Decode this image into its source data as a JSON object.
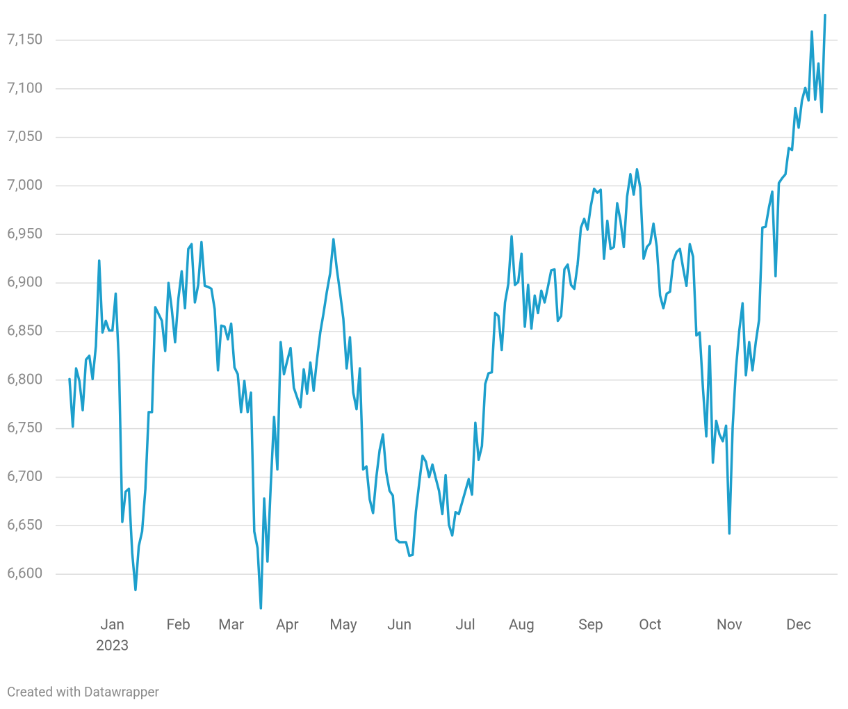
{
  "chart_data": {
    "type": "line",
    "credit": "Created with Datawrapper",
    "color": "#1d9fcc",
    "grid": true,
    "xlim": [
      0,
      229
    ],
    "xticks": [
      {
        "value": 13,
        "label": "Jan",
        "sublabel": "2023"
      },
      {
        "value": 33,
        "label": "Feb"
      },
      {
        "value": 49,
        "label": "Mar"
      },
      {
        "value": 66,
        "label": "Apr"
      },
      {
        "value": 83,
        "label": "May"
      },
      {
        "value": 100,
        "label": "Jun"
      },
      {
        "value": 120,
        "label": "Jul"
      },
      {
        "value": 137,
        "label": "Aug"
      },
      {
        "value": 158,
        "label": "Sep"
      },
      {
        "value": 176,
        "label": "Oct"
      },
      {
        "value": 200,
        "label": "Nov"
      },
      {
        "value": 221,
        "label": "Dec"
      }
    ],
    "ylim": [
      6560,
      7180
    ],
    "yticks": [
      {
        "value": 6600,
        "label": "6,600"
      },
      {
        "value": 6650,
        "label": "6,650"
      },
      {
        "value": 6700,
        "label": "6,700"
      },
      {
        "value": 6750,
        "label": "6,750"
      },
      {
        "value": 6800,
        "label": "6,800"
      },
      {
        "value": 6850,
        "label": "6,850"
      },
      {
        "value": 6900,
        "label": "6,900"
      },
      {
        "value": 6950,
        "label": "6,950"
      },
      {
        "value": 7000,
        "label": "7,000"
      },
      {
        "value": 7050,
        "label": "7,050"
      },
      {
        "value": 7100,
        "label": "7,100"
      },
      {
        "value": 7150,
        "label": "7,150"
      }
    ],
    "values": [
      6801,
      6752,
      6812,
      6799,
      6769,
      6821,
      6825,
      6801,
      6835,
      6923,
      6849,
      6861,
      6851,
      6851,
      6889,
      6816,
      6654,
      6685,
      6688,
      6622,
      6584,
      6629,
      6644,
      6688,
      6767,
      6767,
      6875,
      6868,
      6861,
      6830,
      6900,
      6873,
      6839,
      6884,
      6912,
      6874,
      6935,
      6940,
      6880,
      6898,
      6942,
      6897,
      6896,
      6894,
      6873,
      6810,
      6856,
      6855,
      6842,
      6858,
      6813,
      6806,
      6767,
      6799,
      6767,
      6787,
      6644,
      6627,
      6565,
      6678,
      6613,
      6692,
      6762,
      6708,
      6839,
      6806,
      6820,
      6833,
      6792,
      6782,
      6772,
      6811,
      6786,
      6818,
      6789,
      6821,
      6849,
      6869,
      6891,
      6910,
      6945,
      6915,
      6890,
      6863,
      6812,
      6844,
      6787,
      6770,
      6812,
      6708,
      6711,
      6677,
      6663,
      6700,
      6728,
      6744,
      6705,
      6686,
      6681,
      6636,
      6633,
      6633,
      6633,
      6619,
      6620,
      6665,
      6694,
      6722,
      6716,
      6700,
      6713,
      6699,
      6686,
      6662,
      6702,
      6651,
      6640,
      6664,
      6662,
      6674,
      6686,
      6698,
      6682,
      6756,
      6718,
      6732,
      6796,
      6807,
      6808,
      6869,
      6866,
      6831,
      6880,
      6899,
      6948,
      6898,
      6901,
      6930,
      6855,
      6898,
      6853,
      6887,
      6869,
      6892,
      6880,
      6896,
      6913,
      6914,
      6861,
      6866,
      6914,
      6919,
      6898,
      6894,
      6919,
      6957,
      6966,
      6955,
      6979,
      6997,
      6993,
      6996,
      6925,
      6964,
      6935,
      6937,
      6982,
      6964,
      6937,
      6989,
      7012,
      6991,
      7017,
      6998,
      6925,
      6937,
      6941,
      6961,
      6937,
      6887,
      6874,
      6889,
      6891,
      6923,
      6932,
      6935,
      6915,
      6897,
      6940,
      6927,
      6846,
      6849,
      6791,
      6742,
      6835,
      6715,
      6758,
      6744,
      6737,
      6753,
      6642,
      6752,
      6812,
      6851,
      6879,
      6805,
      6839,
      6810,
      6839,
      6862,
      6957,
      6958,
      6978,
      6994,
      6907,
      7003,
      7008,
      7012,
      7039,
      7037,
      7080,
      7060,
      7088,
      7101,
      7088,
      7159,
      7089,
      7126,
      7076,
      7176
    ]
  }
}
